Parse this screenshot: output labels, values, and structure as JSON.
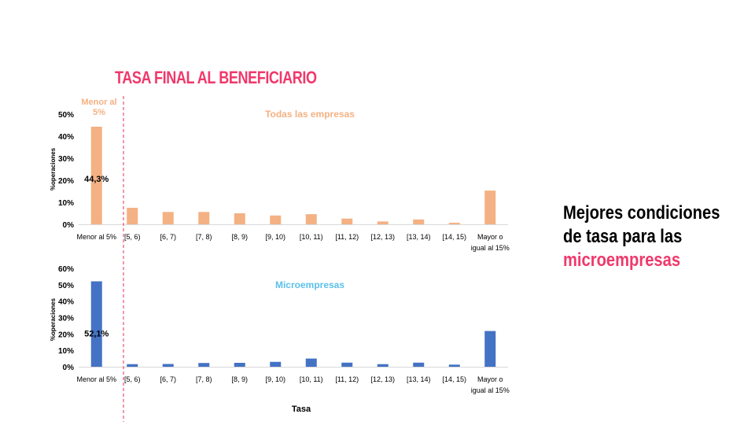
{
  "title": "TASA FINAL AL BENEFICIARIO",
  "side_text": {
    "line1": "Mejores condiciones",
    "line2": "de tasa para las",
    "line3": "microempresas"
  },
  "colors": {
    "accent": "#f0386b",
    "series_all": "#f4b183",
    "series_micro": "#4472c4",
    "divider": "#e0305a"
  },
  "chart_data": [
    {
      "type": "bar",
      "title": "Todas las empresas",
      "xlabel": "",
      "ylabel": "%operaciones",
      "ylim": [
        0,
        50
      ],
      "yticks": [
        "0%",
        "10%",
        "20%",
        "30%",
        "40%",
        "50%"
      ],
      "categories": [
        "Menor al 5%",
        "[5, 6)",
        "[6, 7)",
        "[7, 8)",
        "[8, 9)",
        "[9, 10)",
        "[10, 11)",
        "[11, 12)",
        "[12, 13)",
        "[13, 14)",
        "[14, 15)",
        "Mayor o igual al 15%"
      ],
      "values": [
        44.3,
        7.5,
        5.6,
        5.6,
        5.0,
        4.0,
        4.6,
        2.6,
        1.3,
        2.2,
        0.7,
        15.3
      ],
      "data_label": "44,3%",
      "annotation": "Menor al 5%",
      "color": "#f4b183"
    },
    {
      "type": "bar",
      "title": "Microempresas",
      "xlabel": "Tasa",
      "ylabel": "%operaciones",
      "ylim": [
        0,
        60
      ],
      "yticks": [
        "0%",
        "10%",
        "20%",
        "30%",
        "40%",
        "50%",
        "60%"
      ],
      "categories": [
        "Menor al 5%",
        "[5, 6)",
        "[6, 7)",
        "[7, 8)",
        "[8, 9)",
        "[9, 10)",
        "[10, 11)",
        "[11, 12)",
        "[12, 13)",
        "[13, 14)",
        "[14, 15)",
        "Mayor o igual al 15%"
      ],
      "values": [
        52.1,
        1.6,
        1.7,
        2.3,
        2.4,
        3.0,
        5.0,
        2.5,
        1.6,
        2.5,
        1.3,
        21.8
      ],
      "data_label": "52,1%",
      "color": "#4472c4"
    }
  ]
}
